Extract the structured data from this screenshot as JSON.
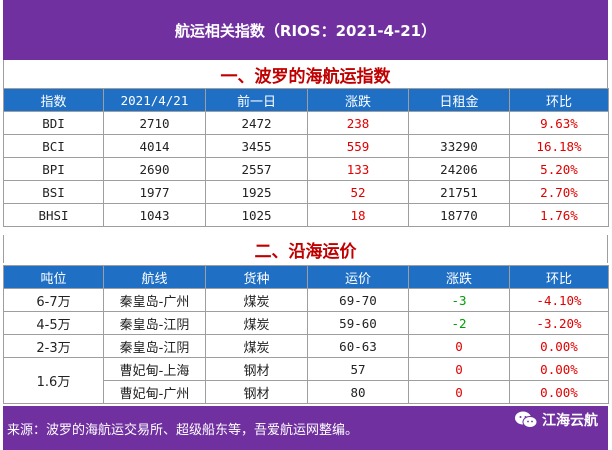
{
  "title": "航运相关指数（RIOS：2021-4-21）",
  "section1": {
    "title": "一、波罗的海航运指数",
    "headers": [
      "指数",
      "2021/4/21",
      "前一日",
      "涨跌",
      "日租金",
      "环比"
    ],
    "rows": [
      [
        "BDI",
        "2710",
        "2472",
        "238",
        "",
        "9.63%"
      ],
      [
        "BCI",
        "4014",
        "3455",
        "559",
        "33290",
        "16.18%"
      ],
      [
        "BPI",
        "2690",
        "2557",
        "133",
        "24206",
        "5.20%"
      ],
      [
        "BSI",
        "1977",
        "1925",
        "52",
        "21751",
        "2.70%"
      ],
      [
        "BHSI",
        "1043",
        "1025",
        "18",
        "18770",
        "1.76%"
      ]
    ]
  },
  "section2": {
    "title": "二、沿海运价",
    "headers": [
      "吨位",
      "航线",
      "货种",
      "运价",
      "涨跌",
      "环比"
    ],
    "rows": [
      [
        "6-7万",
        "秦皇岛-广州",
        "煤炭",
        "69-70",
        "-3",
        "-4.10%"
      ],
      [
        "4-5万",
        "秦皇岛-江阴",
        "煤炭",
        "59-60",
        "-2",
        "-3.20%"
      ],
      [
        "2-3万",
        "秦皇岛-江阴",
        "煤炭",
        "60-63",
        "0",
        "0.00%"
      ],
      [
        "1.6万",
        "曹妃甸-上海",
        "钢材",
        "57",
        "0",
        "0.00%"
      ],
      [
        "",
        "曹妃甸-广州",
        "钢材",
        "80",
        "0",
        "0.00%"
      ]
    ]
  },
  "footer": {
    "source": "来源：波罗的海航运交易所、超级船东等，吾爱航运网整编。",
    "brand": "江海云航"
  },
  "colors": {
    "banner": "#7030a0",
    "header": "#1f6fc5",
    "section_title": "#c00000",
    "up": "#e00000",
    "down": "#00a000"
  }
}
